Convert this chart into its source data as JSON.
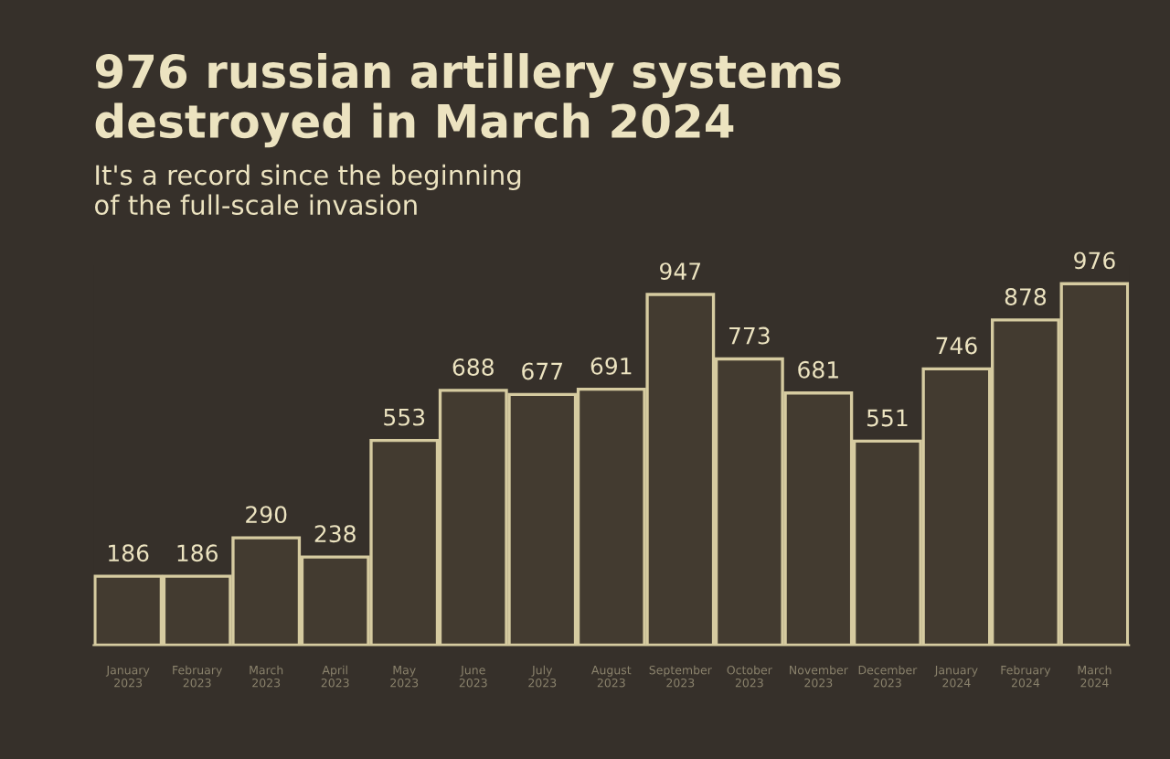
{
  "chart_data": {
    "type": "bar",
    "title": "976 russian artillery systems\ndestroyed in March 2024",
    "subtitle": "It's a record since the beginning\nof the full-scale invasion",
    "categories": [
      "January\n2023",
      "February\n2023",
      "March\n2023",
      "April\n2023",
      "May\n2023",
      "June\n2023",
      "July\n2023",
      "August\n2023",
      "September\n2023",
      "October\n2023",
      "November\n2023",
      "December\n2023",
      "January\n2024",
      "February\n2024",
      "March\n2024"
    ],
    "values": [
      186,
      186,
      290,
      238,
      553,
      688,
      677,
      691,
      947,
      773,
      681,
      551,
      746,
      878,
      976
    ],
    "color": "#d6cba0",
    "data_labels": true,
    "grid": false,
    "legend": false
  }
}
